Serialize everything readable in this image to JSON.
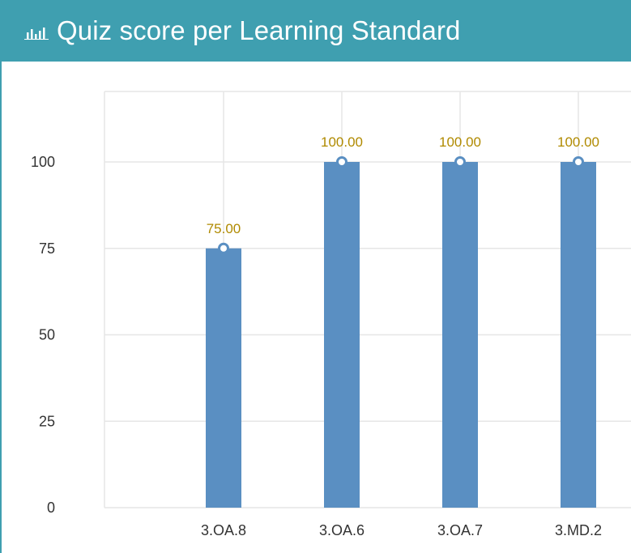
{
  "header": {
    "title": "Quiz score per Learning Standard",
    "icon": "bar-chart-icon"
  },
  "colors": {
    "header_bg": "#3f9fb0",
    "bar": "#5a8fc2",
    "data_label": "#b08a00",
    "grid": "#e6e6e6"
  },
  "chart_data": {
    "type": "bar",
    "title": "Quiz score per Learning Standard",
    "categories": [
      "3.OA.8",
      "3.OA.6",
      "3.OA.7",
      "3.MD.2"
    ],
    "values": [
      75,
      100,
      100,
      100
    ],
    "data_labels": [
      "75.00",
      "100.00",
      "100.00",
      "100.00"
    ],
    "yticks": [
      0,
      25,
      50,
      75,
      100
    ],
    "ylim": [
      0,
      120
    ],
    "grid": true,
    "xlabel": "",
    "ylabel": ""
  }
}
